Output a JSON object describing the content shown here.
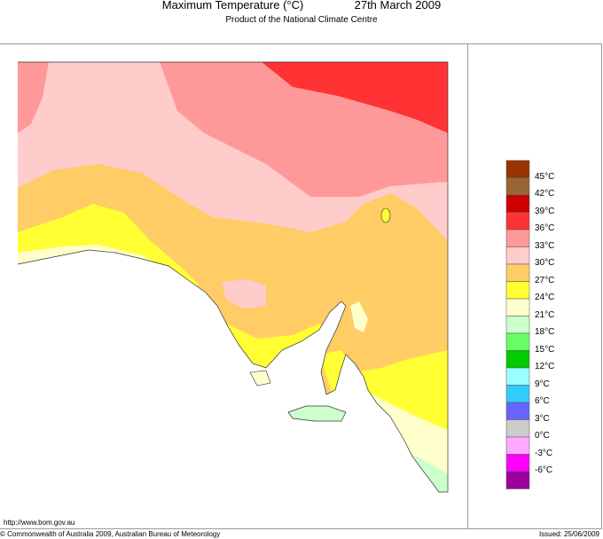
{
  "header": {
    "title": "Maximum Temperature (°C)",
    "date": "27th March 2009",
    "subtitle": "Product of the National Climate Centre"
  },
  "legend": {
    "swatches": [
      "#993300",
      "#996633",
      "#cc0000",
      "#ff3333",
      "#ff9999",
      "#ffcccc",
      "#ffcc66",
      "#ffff33",
      "#ffffcc",
      "#ccffcc",
      "#66ff66",
      "#00cc00",
      "#99ffff",
      "#33ccff",
      "#6666ff",
      "#cccccc",
      "#ffaaff",
      "#ff00ff",
      "#990099"
    ],
    "labels": [
      "45°C",
      "42°C",
      "39°C",
      "36°C",
      "33°C",
      "30°C",
      "27°C",
      "24°C",
      "21°C",
      "18°C",
      "15°C",
      "12°C",
      "9°C",
      "6°C",
      "3°C",
      "0°C",
      "-3°C",
      "-6°C"
    ]
  },
  "footer": {
    "url": "http://www.bom.gov.au",
    "copyright": "© Commonwealth of Australia 2009, Australian Bureau of Meteorology",
    "issued": "Issued: 25/06/2009"
  }
}
